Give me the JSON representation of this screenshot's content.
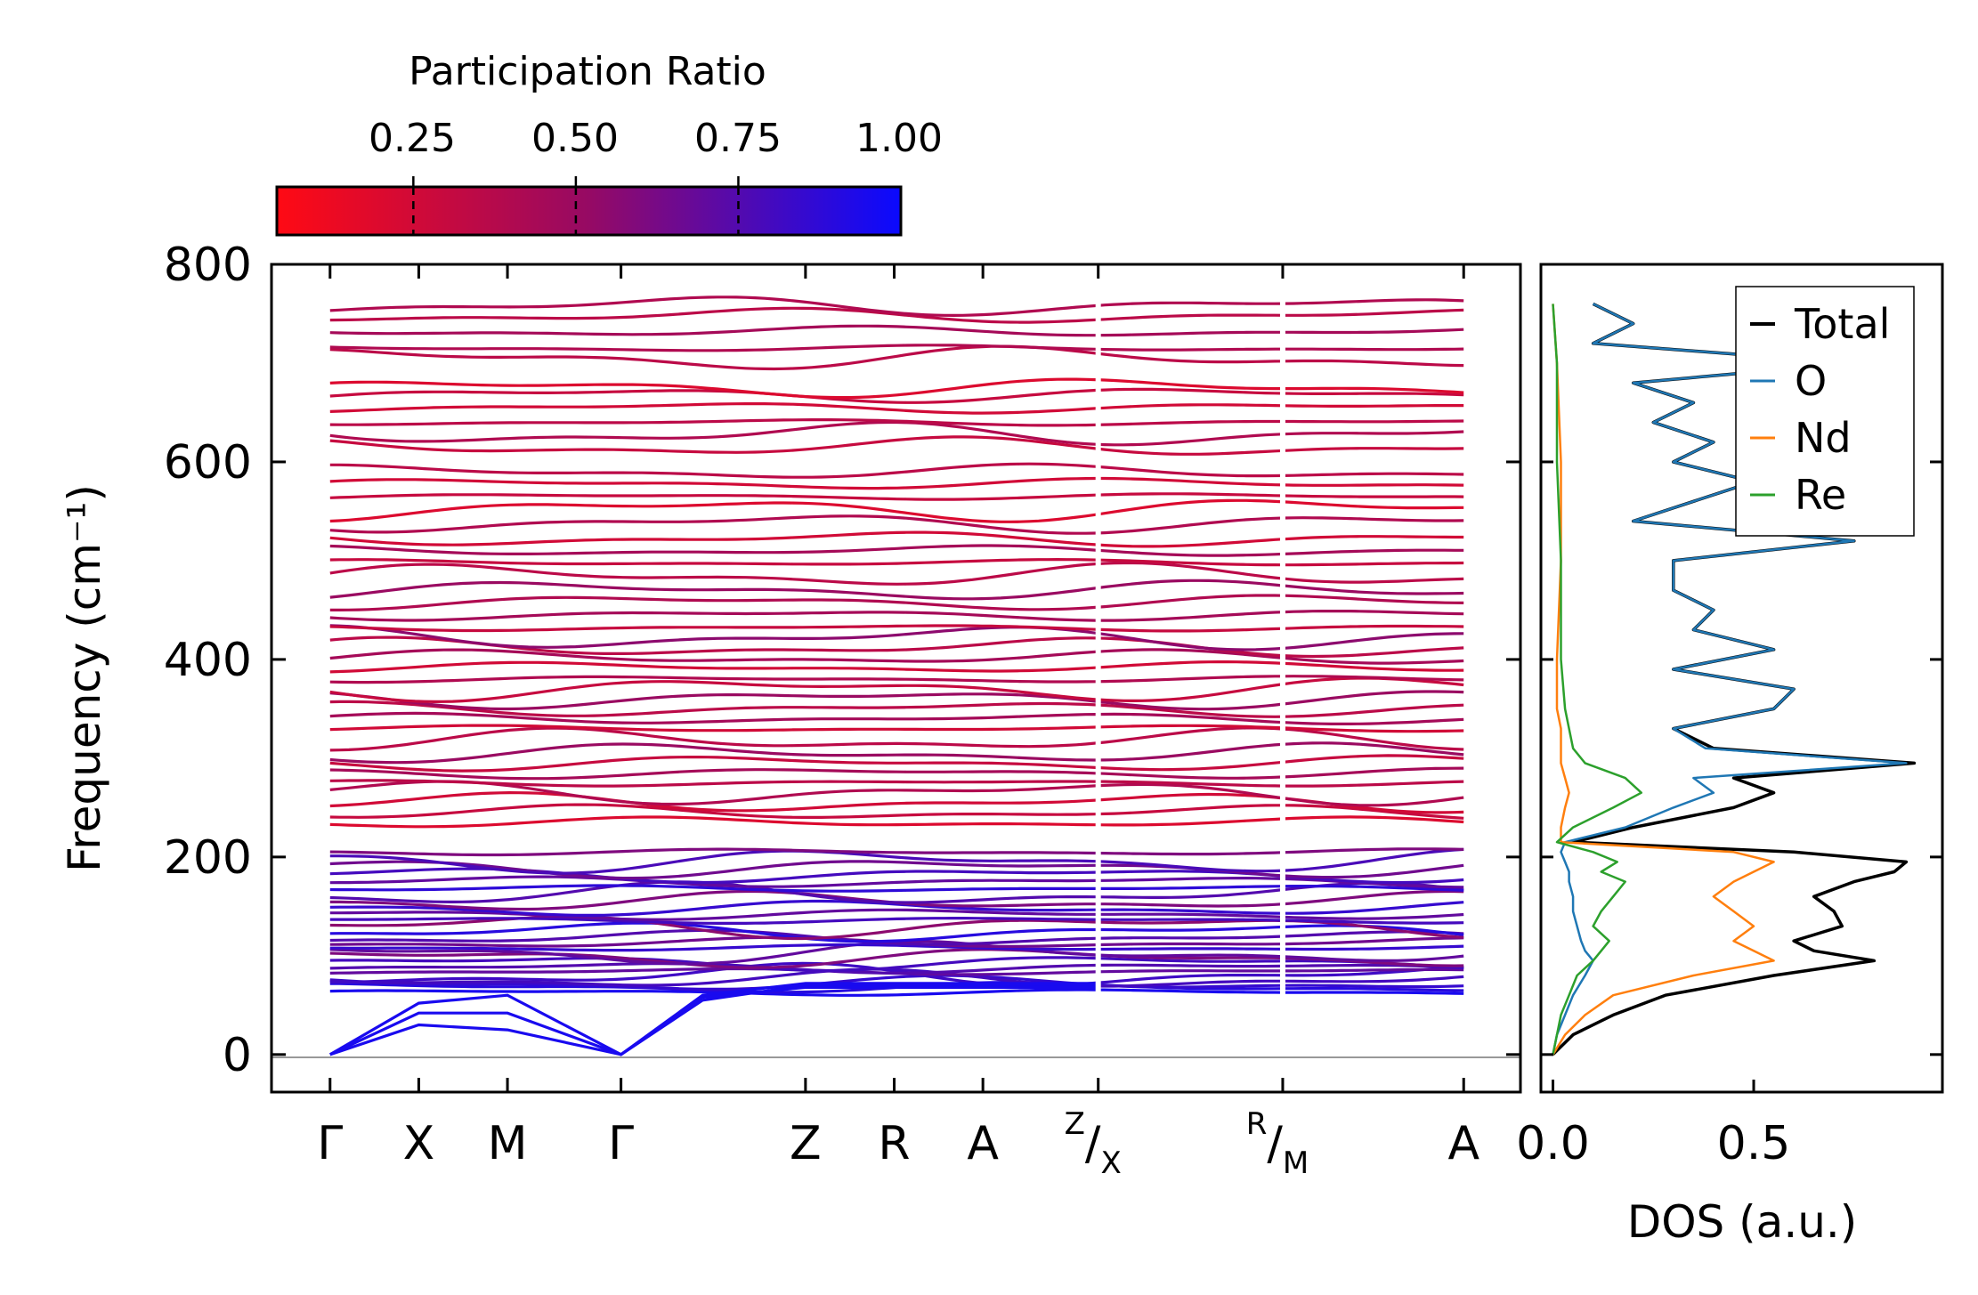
{
  "colorbar": {
    "label": "Participation Ratio",
    "ticks": [
      "0.25",
      "0.50",
      "0.75",
      "1.00"
    ],
    "tick_values": [
      0.25,
      0.5,
      0.75,
      1.0
    ],
    "range": [
      0.04,
      1.0
    ],
    "low_color": "#ff0a14",
    "mid_color": "#960a64",
    "high_color": "#0a0aff"
  },
  "chart_data": [
    {
      "type": "line",
      "name": "phonon-band-structure",
      "ylabel": "Frequency (cm⁻¹)",
      "ylim": [
        -38,
        800
      ],
      "yticks": [
        0,
        200,
        400,
        600,
        800
      ],
      "xticks": [
        {
          "label": "Γ",
          "x": 0.0
        },
        {
          "label": "X",
          "x": 0.5
        },
        {
          "label": "M",
          "x": 1.0
        },
        {
          "label": "Γ",
          "x": 1.64
        },
        {
          "label": "Z",
          "x": 2.68
        },
        {
          "label": "R",
          "x": 3.18
        },
        {
          "label": "A",
          "x": 3.68
        },
        {
          "sup": "Z",
          "label": "/",
          "sub": "X",
          "x": 4.33
        },
        {
          "sup": "R",
          "label": "/",
          "sub": "M",
          "x": 5.37
        },
        {
          "label": "A",
          "x": 6.39
        }
      ],
      "xlim": [
        -0.33,
        6.71
      ],
      "segment_breaks": [
        4.33,
        5.37
      ],
      "zero_line": 0,
      "acoustic_branches": [
        {
          "x": [
            0,
            0.5,
            1.0,
            1.64,
            2.1,
            2.68,
            4.33
          ],
          "y": [
            0,
            30,
            25,
            0,
            60,
            72,
            72
          ]
        },
        {
          "x": [
            0,
            0.5,
            1.0,
            1.64,
            2.1,
            2.68,
            4.33
          ],
          "y": [
            0,
            42,
            42,
            0,
            55,
            70,
            70
          ]
        },
        {
          "x": [
            0,
            0.5,
            1.0,
            1.64,
            2.1,
            2.68,
            4.33
          ],
          "y": [
            0,
            52,
            60,
            0,
            58,
            68,
            68
          ]
        }
      ],
      "band_levels": [
        63,
        68,
        72,
        76,
        80,
        84,
        88,
        93,
        98,
        103,
        108,
        113,
        118,
        124,
        130,
        136,
        142,
        148,
        155,
        162,
        168,
        175,
        182,
        189,
        196,
        205,
        235,
        245,
        255,
        265,
        275,
        285,
        295,
        305,
        318,
        330,
        340,
        350,
        360,
        370,
        380,
        392,
        402,
        412,
        422,
        432,
        445,
        458,
        470,
        485,
        498,
        510,
        522,
        538,
        552,
        565,
        578,
        590,
        615,
        628,
        640,
        655,
        668,
        675,
        705,
        715,
        732,
        748,
        758
      ],
      "band_participation": [
        0.95,
        0.9,
        0.85,
        0.8,
        0.82,
        0.7,
        0.75,
        0.8,
        0.6,
        0.7,
        0.85,
        0.65,
        0.75,
        0.9,
        0.55,
        0.8,
        0.7,
        0.85,
        0.6,
        0.75,
        0.88,
        0.7,
        0.8,
        0.65,
        0.78,
        0.6,
        0.2,
        0.3,
        0.25,
        0.4,
        0.35,
        0.45,
        0.3,
        0.5,
        0.35,
        0.25,
        0.45,
        0.35,
        0.5,
        0.3,
        0.4,
        0.25,
        0.45,
        0.35,
        0.55,
        0.3,
        0.45,
        0.4,
        0.5,
        0.35,
        0.3,
        0.45,
        0.25,
        0.4,
        0.2,
        0.3,
        0.25,
        0.35,
        0.3,
        0.4,
        0.35,
        0.25,
        0.3,
        0.2,
        0.35,
        0.4,
        0.45,
        0.35,
        0.4
      ]
    },
    {
      "type": "line",
      "name": "projected-dos",
      "xlabel": "DOS (a.u.)",
      "xlim": [
        -0.03,
        0.97
      ],
      "xticks": [
        0.0,
        0.5
      ],
      "xtick_labels": [
        "0.0",
        "0.5"
      ],
      "ylim": [
        -38,
        800
      ],
      "legend_position": "top-right",
      "series": [
        {
          "name": "Total",
          "color": "#000000",
          "freq": [
            0,
            20,
            40,
            60,
            80,
            95,
            105,
            115,
            130,
            145,
            160,
            175,
            185,
            195,
            205,
            215,
            230,
            250,
            265,
            280,
            295,
            310,
            330,
            350,
            370,
            390,
            410,
            430,
            450,
            470,
            500,
            520,
            540,
            560,
            580,
            600,
            620,
            640,
            660,
            680,
            700,
            720,
            740,
            760
          ],
          "values": [
            0.0,
            0.05,
            0.15,
            0.28,
            0.55,
            0.8,
            0.65,
            0.6,
            0.72,
            0.7,
            0.65,
            0.75,
            0.85,
            0.88,
            0.6,
            0.05,
            0.2,
            0.45,
            0.55,
            0.45,
            0.9,
            0.4,
            0.3,
            0.55,
            0.6,
            0.3,
            0.55,
            0.35,
            0.4,
            0.3,
            0.3,
            0.75,
            0.2,
            0.35,
            0.5,
            0.3,
            0.4,
            0.25,
            0.35,
            0.2,
            0.75,
            0.1,
            0.2,
            0.1
          ]
        },
        {
          "name": "O",
          "color": "#1f77b4",
          "freq": [
            0,
            20,
            40,
            60,
            80,
            95,
            105,
            115,
            130,
            145,
            160,
            175,
            185,
            195,
            205,
            215,
            230,
            250,
            265,
            280,
            295,
            310,
            330,
            350,
            370,
            390,
            410,
            430,
            450,
            470,
            500,
            520,
            540,
            560,
            580,
            600,
            620,
            640,
            660,
            680,
            700,
            720,
            740,
            760
          ],
          "values": [
            0.0,
            0.01,
            0.03,
            0.05,
            0.08,
            0.1,
            0.08,
            0.07,
            0.06,
            0.05,
            0.05,
            0.04,
            0.04,
            0.03,
            0.02,
            0.03,
            0.18,
            0.3,
            0.4,
            0.35,
            0.88,
            0.38,
            0.3,
            0.55,
            0.6,
            0.3,
            0.55,
            0.35,
            0.4,
            0.3,
            0.3,
            0.75,
            0.2,
            0.35,
            0.5,
            0.3,
            0.4,
            0.25,
            0.35,
            0.2,
            0.75,
            0.1,
            0.2,
            0.1
          ]
        },
        {
          "name": "Nd",
          "color": "#ff7f0e",
          "freq": [
            0,
            20,
            40,
            60,
            80,
            95,
            105,
            115,
            130,
            145,
            160,
            175,
            185,
            195,
            205,
            215,
            230,
            250,
            265,
            280,
            295,
            310,
            330,
            350,
            400,
            500,
            600,
            700,
            760
          ],
          "values": [
            0.0,
            0.03,
            0.08,
            0.15,
            0.35,
            0.55,
            0.5,
            0.45,
            0.5,
            0.45,
            0.4,
            0.45,
            0.5,
            0.55,
            0.45,
            0.02,
            0.02,
            0.03,
            0.04,
            0.03,
            0.02,
            0.02,
            0.02,
            0.01,
            0.01,
            0.02,
            0.02,
            0.01,
            0.0
          ]
        },
        {
          "name": "Re",
          "color": "#2ca02c",
          "freq": [
            0,
            20,
            40,
            60,
            80,
            95,
            105,
            115,
            130,
            145,
            160,
            175,
            185,
            195,
            205,
            215,
            230,
            250,
            265,
            280,
            295,
            310,
            330,
            350,
            400,
            500,
            600,
            700,
            760
          ],
          "values": [
            0.0,
            0.01,
            0.02,
            0.04,
            0.06,
            0.1,
            0.12,
            0.14,
            0.1,
            0.12,
            0.15,
            0.18,
            0.12,
            0.16,
            0.1,
            0.01,
            0.05,
            0.15,
            0.22,
            0.18,
            0.08,
            0.05,
            0.04,
            0.03,
            0.02,
            0.02,
            0.01,
            0.01,
            0.0
          ]
        }
      ]
    }
  ]
}
